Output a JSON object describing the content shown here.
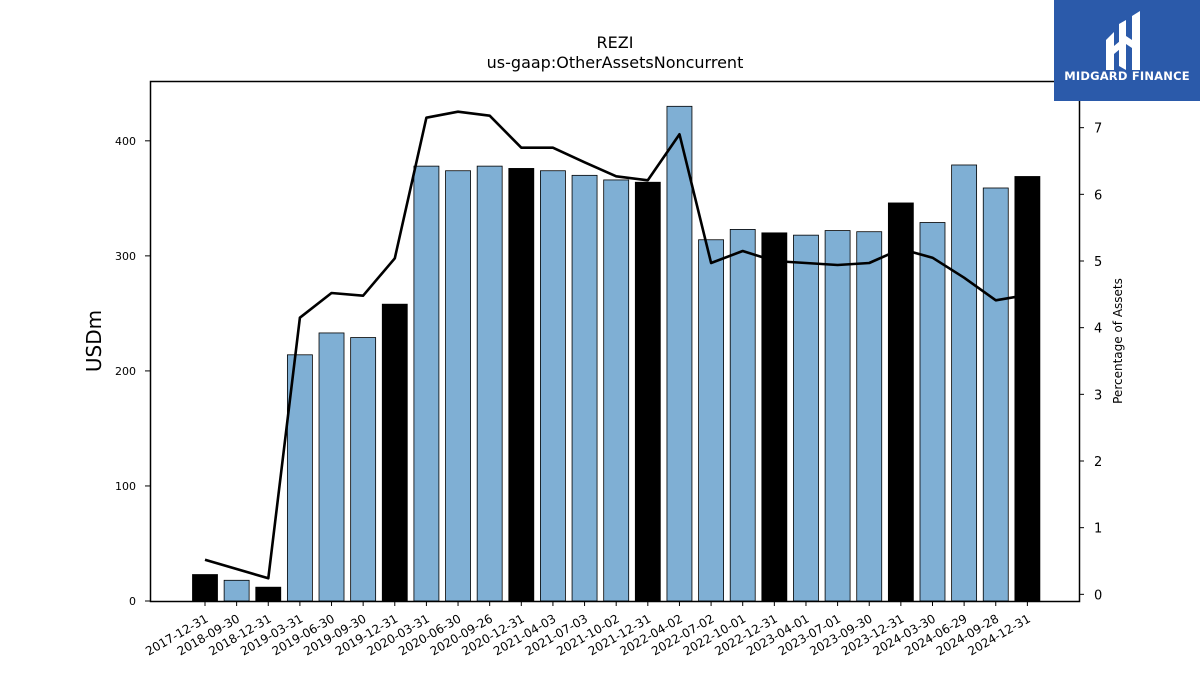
{
  "logo": {
    "text": "MIDGARD FINANCE",
    "background": "#2b5aaa"
  },
  "chart_data": {
    "type": "bar",
    "title": "REZI",
    "subtitle": "us-gaap:OtherAssetsNoncurrent",
    "ylabel": "USDm",
    "y2label": "Percentage of Assets",
    "ylim": [
      0,
      452
    ],
    "y2lim": [
      -0.1,
      7.7
    ],
    "yticks": [
      0,
      100,
      200,
      300,
      400
    ],
    "y2ticks": [
      0,
      1,
      2,
      3,
      4,
      5,
      6,
      7
    ],
    "categories": [
      "2017-12-31",
      "2018-09-30",
      "2018-12-31",
      "2019-03-31",
      "2019-06-30",
      "2019-09-30",
      "2019-12-31",
      "2020-03-31",
      "2020-06-30",
      "2020-09-26",
      "2020-12-31",
      "2021-04-03",
      "2021-07-03",
      "2021-10-02",
      "2021-12-31",
      "2022-04-02",
      "2022-07-02",
      "2022-10-01",
      "2022-12-31",
      "2023-04-01",
      "2023-07-01",
      "2023-09-30",
      "2023-12-31",
      "2024-03-30",
      "2024-06-29",
      "2024-09-28",
      "2024-12-31"
    ],
    "series": [
      {
        "type": "bar",
        "values": [
          23,
          18,
          12,
          214,
          233,
          229,
          258,
          378,
          374,
          378,
          376,
          374,
          370,
          366,
          364,
          430,
          314,
          323,
          320,
          318,
          322,
          321,
          346,
          329,
          379,
          359,
          369
        ],
        "colors": [
          "#000000",
          "#7fafd4",
          "#000000",
          "#7fafd4",
          "#7fafd4",
          "#7fafd4",
          "#000000",
          "#7fafd4",
          "#7fafd4",
          "#7fafd4",
          "#000000",
          "#7fafd4",
          "#7fafd4",
          "#7fafd4",
          "#000000",
          "#7fafd4",
          "#7fafd4",
          "#7fafd4",
          "#000000",
          "#7fafd4",
          "#7fafd4",
          "#7fafd4",
          "#000000",
          "#7fafd4",
          "#7fafd4",
          "#7fafd4",
          "#000000"
        ]
      },
      {
        "type": "line",
        "axis": "right",
        "color": "#000000",
        "values": [
          0.52,
          null,
          0.24,
          4.15,
          4.52,
          4.48,
          5.04,
          7.15,
          7.24,
          7.18,
          6.7,
          6.7,
          6.48,
          6.27,
          6.21,
          6.9,
          4.97,
          5.15,
          5.0,
          4.97,
          4.94,
          4.97,
          5.18,
          5.05,
          4.75,
          4.41,
          4.49
        ]
      }
    ],
    "grid": false,
    "legend": "none"
  }
}
